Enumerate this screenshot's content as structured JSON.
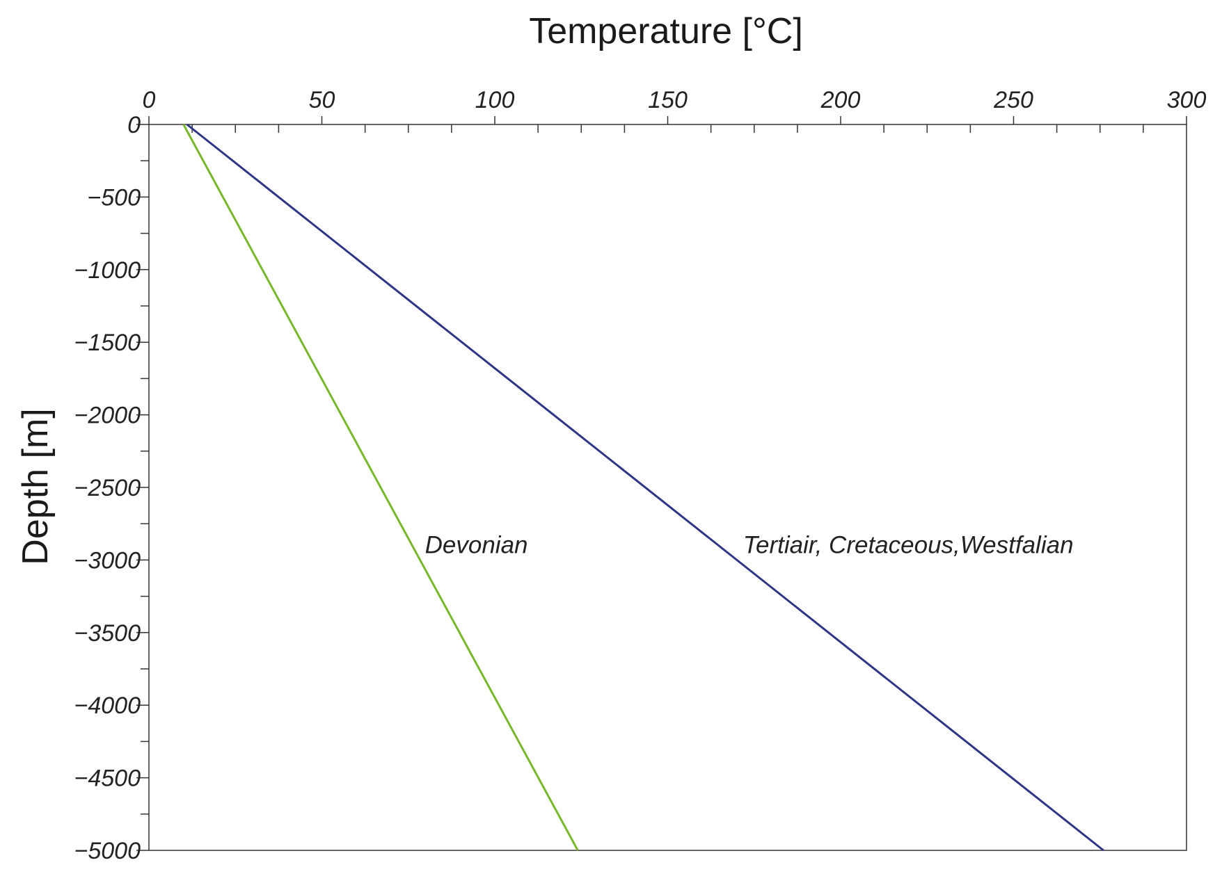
{
  "chart_data": {
    "type": "line",
    "title": "",
    "xlabel": "Temperature [°C]",
    "ylabel": "Depth [m]",
    "xlim": [
      0,
      300
    ],
    "ylim": [
      -5000,
      0
    ],
    "x_ticks": [
      0,
      50,
      100,
      150,
      200,
      250,
      300
    ],
    "y_ticks": [
      0,
      -500,
      -1000,
      -1500,
      -2000,
      -2500,
      -3000,
      -3500,
      -4000,
      -4500,
      -5000
    ],
    "x_tick_labels": [
      "0",
      "50",
      "100",
      "150",
      "200",
      "250",
      "300"
    ],
    "y_tick_labels": [
      "0",
      "−500",
      "−1000",
      "−1500",
      "−2000",
      "−2500",
      "−3000",
      "−3500",
      "−4000",
      "−4500",
      "−5000"
    ],
    "x_axis_position": "top",
    "grid": false,
    "series": [
      {
        "name": "Devonian",
        "color": "#76b82a",
        "x": [
          10,
          124
        ],
        "y": [
          0,
          -5000
        ]
      },
      {
        "name": "Tertiair, Cretaceous,Westfalian",
        "color": "#2e3586",
        "x": [
          11,
          276
        ],
        "y": [
          0,
          -5000
        ]
      }
    ],
    "annotations": [
      {
        "text": "Devonian",
        "x": 79,
        "y": -3000
      },
      {
        "text": "Tertiair, Cretaceous,Westfalian",
        "x": 171,
        "y": -3000
      }
    ]
  }
}
